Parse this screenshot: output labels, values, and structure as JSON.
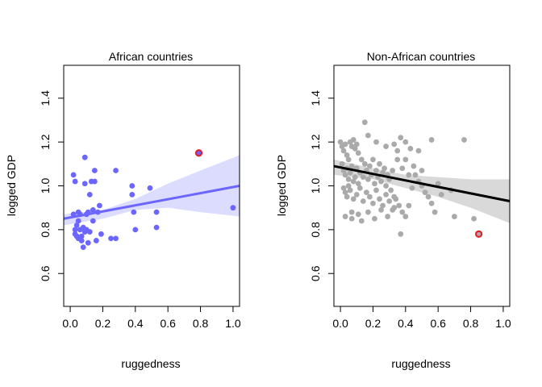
{
  "chart_data": [
    {
      "type": "scatter",
      "title": "African countries",
      "xlabel": "ruggedness",
      "ylabel": "logged GDP",
      "xlim": [
        -0.04,
        1.04
      ],
      "ylim": [
        0.45,
        1.55
      ],
      "xticks": [
        "0.0",
        "0.2",
        "0.4",
        "0.6",
        "0.8",
        "1.0"
      ],
      "xtick_values": [
        0,
        0.2,
        0.4,
        0.6,
        0.8,
        1.0
      ],
      "yticks": [
        "0.6",
        "0.8",
        "1.0",
        "1.2",
        "1.4"
      ],
      "ytick_values": [
        0.6,
        0.8,
        1.0,
        1.2,
        1.4
      ],
      "grid": false,
      "point_color": "#6b66ff",
      "band_color": "#dcdcff",
      "line_color": "#6b66ff",
      "highlight_color": "#e8191f",
      "points": [
        [
          0.02,
          0.87
        ],
        [
          0.03,
          0.8
        ],
        [
          0.03,
          0.78
        ],
        [
          0.04,
          0.82
        ],
        [
          0.05,
          0.88
        ],
        [
          0.05,
          0.84
        ],
        [
          0.06,
          0.8
        ],
        [
          0.07,
          0.77
        ],
        [
          0.08,
          0.81
        ],
        [
          0.09,
          0.79
        ],
        [
          0.1,
          0.8
        ],
        [
          0.11,
          0.88
        ],
        [
          0.02,
          1.05
        ],
        [
          0.03,
          1.02
        ],
        [
          0.04,
          0.77
        ],
        [
          0.06,
          0.87
        ],
        [
          0.07,
          0.75
        ],
        [
          0.08,
          0.72
        ],
        [
          0.09,
          1.01
        ],
        [
          0.1,
          0.87
        ],
        [
          0.11,
          0.74
        ],
        [
          0.12,
          0.96
        ],
        [
          0.13,
          1.02
        ],
        [
          0.14,
          0.89
        ],
        [
          0.15,
          1.07
        ],
        [
          0.16,
          0.75
        ],
        [
          0.17,
          0.88
        ],
        [
          0.18,
          0.91
        ],
        [
          0.14,
          0.84
        ],
        [
          0.15,
          1.02
        ],
        [
          0.09,
          1.13
        ],
        [
          0.19,
          0.78
        ],
        [
          0.25,
          0.76
        ],
        [
          0.28,
          0.76
        ],
        [
          0.28,
          1.07
        ],
        [
          0.38,
          1.0
        ],
        [
          0.38,
          0.96
        ],
        [
          0.39,
          0.88
        ],
        [
          0.4,
          0.8
        ],
        [
          0.49,
          0.99
        ],
        [
          0.53,
          0.88
        ],
        [
          0.53,
          0.81
        ],
        [
          1.0,
          0.9
        ],
        [
          0.12,
          0.79
        ],
        [
          0.05,
          0.76
        ]
      ],
      "highlight_point": [
        0.79,
        1.15
      ],
      "fit_line": [
        [
          -0.04,
          0.85
        ],
        [
          1.04,
          1.0
        ]
      ],
      "band_upper": [
        [
          -0.04,
          0.87
        ],
        [
          0.2,
          0.89
        ],
        [
          0.4,
          0.94
        ],
        [
          0.6,
          1.01
        ],
        [
          0.8,
          1.07
        ],
        [
          1.04,
          1.14
        ]
      ],
      "band_lower": [
        [
          -0.04,
          0.82
        ],
        [
          0.2,
          0.85
        ],
        [
          0.4,
          0.89
        ],
        [
          0.6,
          0.9
        ],
        [
          0.8,
          0.88
        ],
        [
          1.04,
          0.86
        ]
      ]
    },
    {
      "type": "scatter",
      "title": "Non-African countries",
      "xlabel": "ruggedness",
      "ylabel": "logged GDP",
      "xlim": [
        -0.04,
        1.04
      ],
      "ylim": [
        0.45,
        1.55
      ],
      "xticks": [
        "0.0",
        "0.2",
        "0.4",
        "0.6",
        "0.8",
        "1.0"
      ],
      "xtick_values": [
        0,
        0.2,
        0.4,
        0.6,
        0.8,
        1.0
      ],
      "yticks": [
        "0.6",
        "0.8",
        "1.0",
        "1.2",
        "1.4"
      ],
      "ytick_values": [
        0.6,
        0.8,
        1.0,
        1.2,
        1.4
      ],
      "grid": false,
      "point_color": "#aaaaaa",
      "band_color": "#d9d9d9",
      "line_color": "#000000",
      "highlight_color": "#e8191f",
      "points": [
        [
          0.0,
          1.2
        ],
        [
          0.01,
          1.18
        ],
        [
          0.02,
          1.16
        ],
        [
          0.03,
          1.19
        ],
        [
          0.04,
          1.14
        ],
        [
          0.05,
          1.12
        ],
        [
          0.06,
          1.2
        ],
        [
          0.07,
          1.18
        ],
        [
          0.08,
          1.21
        ],
        [
          0.09,
          1.17
        ],
        [
          0.1,
          1.19
        ],
        [
          0.11,
          1.15
        ],
        [
          0.01,
          1.1
        ],
        [
          0.02,
          1.07
        ],
        [
          0.03,
          1.05
        ],
        [
          0.04,
          1.08
        ],
        [
          0.05,
          1.03
        ],
        [
          0.06,
          1.06
        ],
        [
          0.07,
          1.09
        ],
        [
          0.08,
          1.02
        ],
        [
          0.09,
          1.04
        ],
        [
          0.1,
          1.08
        ],
        [
          0.11,
          1.01
        ],
        [
          0.12,
          1.06
        ],
        [
          0.13,
          1.12
        ],
        [
          0.14,
          1.04
        ],
        [
          0.15,
          1.1
        ],
        [
          0.16,
          1.07
        ],
        [
          0.17,
          1.03
        ],
        [
          0.18,
          1.09
        ],
        [
          0.19,
          1.05
        ],
        [
          0.2,
          1.12
        ],
        [
          0.21,
          1.01
        ],
        [
          0.22,
          1.07
        ],
        [
          0.23,
          1.04
        ],
        [
          0.24,
          1.1
        ],
        [
          0.25,
          1.02
        ],
        [
          0.26,
          1.06
        ],
        [
          0.27,
          1.08
        ],
        [
          0.28,
          1.0
        ],
        [
          0.29,
          1.05
        ],
        [
          0.3,
          1.03
        ],
        [
          0.31,
          0.98
        ],
        [
          0.32,
          1.07
        ],
        [
          0.33,
          0.95
        ],
        [
          0.02,
          0.99
        ],
        [
          0.03,
          0.97
        ],
        [
          0.04,
          0.95
        ],
        [
          0.05,
          1.0
        ],
        [
          0.06,
          0.98
        ],
        [
          0.08,
          0.94
        ],
        [
          0.1,
          0.96
        ],
        [
          0.12,
          0.99
        ],
        [
          0.14,
          0.93
        ],
        [
          0.16,
          0.97
        ],
        [
          0.18,
          0.95
        ],
        [
          0.2,
          0.92
        ],
        [
          0.22,
          0.98
        ],
        [
          0.24,
          0.94
        ],
        [
          0.26,
          0.91
        ],
        [
          0.28,
          0.96
        ],
        [
          0.3,
          0.93
        ],
        [
          0.32,
          0.89
        ],
        [
          0.34,
          0.94
        ],
        [
          0.36,
          0.91
        ],
        [
          0.03,
          0.86
        ],
        [
          0.07,
          0.88
        ],
        [
          0.07,
          0.85
        ],
        [
          0.11,
          0.87
        ],
        [
          0.13,
          0.84
        ],
        [
          0.17,
          0.88
        ],
        [
          0.21,
          0.85
        ],
        [
          0.25,
          0.89
        ],
        [
          0.29,
          0.86
        ],
        [
          0.33,
          0.9
        ],
        [
          0.37,
          0.78
        ],
        [
          0.38,
          0.88
        ],
        [
          0.4,
          0.86
        ],
        [
          0.42,
          0.91
        ],
        [
          0.44,
          0.99
        ],
        [
          0.46,
          1.05
        ],
        [
          0.48,
          1.02
        ],
        [
          0.5,
          1.0
        ],
        [
          0.52,
          0.97
        ],
        [
          0.54,
          0.95
        ],
        [
          0.56,
          0.92
        ],
        [
          0.58,
          0.88
        ],
        [
          0.62,
          0.96
        ],
        [
          0.68,
          0.98
        ],
        [
          0.7,
          0.86
        ],
        [
          0.15,
          1.29
        ],
        [
          0.17,
          1.23
        ],
        [
          0.22,
          1.2
        ],
        [
          0.28,
          1.18
        ],
        [
          0.33,
          1.19
        ],
        [
          0.35,
          1.16
        ],
        [
          0.37,
          1.22
        ],
        [
          0.4,
          1.2
        ],
        [
          0.43,
          1.17
        ],
        [
          0.48,
          1.16
        ],
        [
          0.56,
          1.21
        ],
        [
          0.76,
          1.21
        ],
        [
          0.82,
          0.85
        ],
        [
          0.35,
          1.12
        ],
        [
          0.38,
          1.08
        ],
        [
          0.4,
          1.12
        ],
        [
          0.42,
          1.05
        ],
        [
          0.45,
          1.09
        ],
        [
          0.5,
          1.07
        ],
        [
          0.6,
          1.01
        ]
      ],
      "highlight_point": [
        0.85,
        0.78
      ],
      "fit_line": [
        [
          -0.04,
          1.09
        ],
        [
          1.04,
          0.93
        ]
      ],
      "band_upper": [
        [
          -0.04,
          1.12
        ],
        [
          0.2,
          1.08
        ],
        [
          0.4,
          1.05
        ],
        [
          0.6,
          1.04
        ],
        [
          0.8,
          1.03
        ],
        [
          1.04,
          1.03
        ]
      ],
      "band_lower": [
        [
          -0.04,
          1.05
        ],
        [
          0.2,
          1.03
        ],
        [
          0.4,
          0.99
        ],
        [
          0.6,
          0.95
        ],
        [
          0.8,
          0.9
        ],
        [
          1.04,
          0.83
        ]
      ]
    }
  ]
}
